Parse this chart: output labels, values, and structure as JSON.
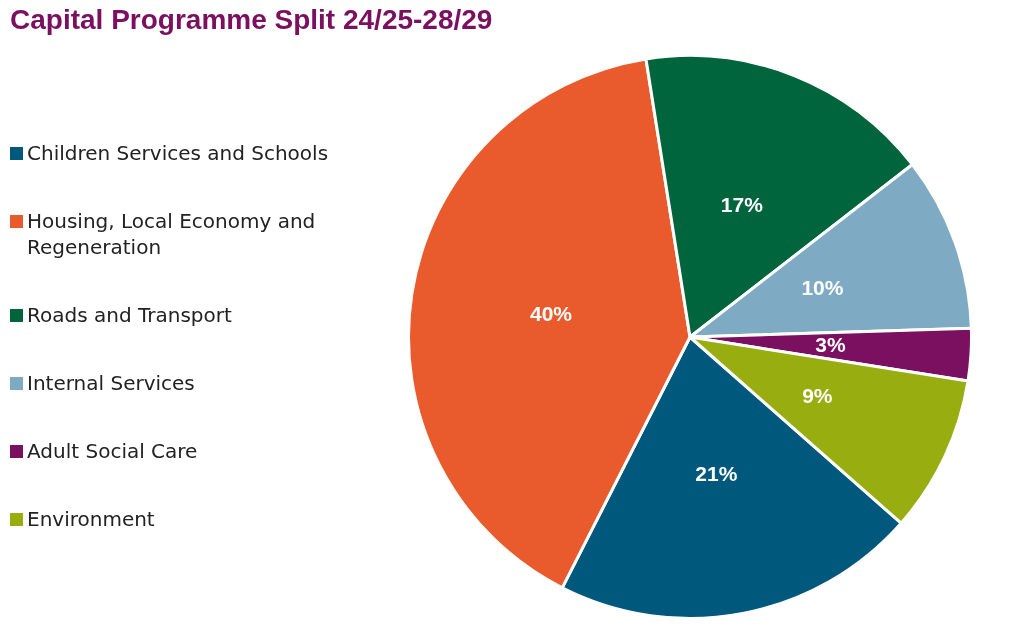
{
  "chart_data": {
    "type": "pie",
    "title": "Capital Programme Split 24/25-28/29",
    "categories": [
      "Children Services and Schools",
      "Housing, Local Economy and Regeneration",
      "Roads and Transport",
      "Internal Services",
      "Adult Social Care",
      "Environment"
    ],
    "values": [
      21,
      40,
      17,
      10,
      3,
      9
    ],
    "colors": [
      "#00587c",
      "#e95b2c",
      "#00643c",
      "#7eaac3",
      "#7b1060",
      "#98ad10"
    ],
    "value_labels": [
      "21%",
      "40%",
      "17%",
      "10%",
      "3%",
      "9%"
    ],
    "legend": "left"
  }
}
